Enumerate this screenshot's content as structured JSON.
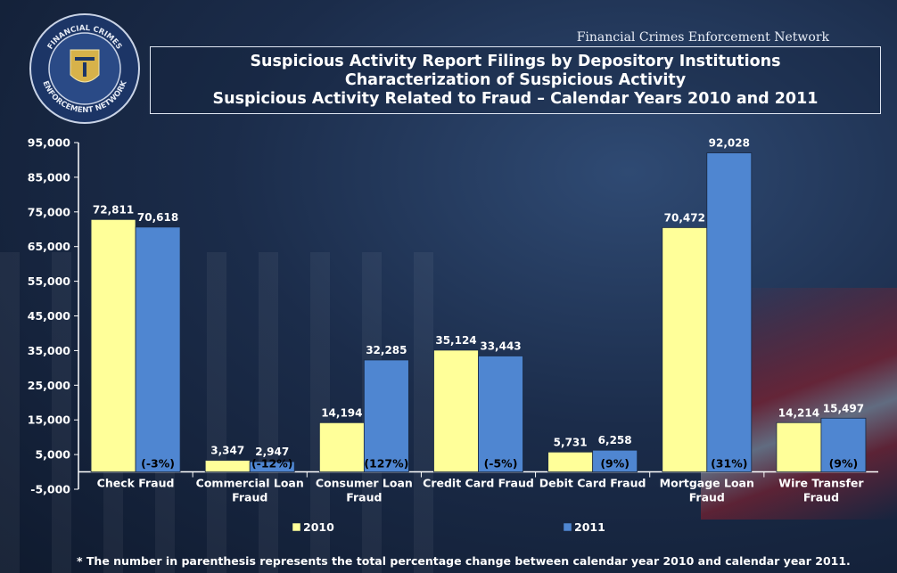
{
  "header": {
    "organization": "Financial Crimes Enforcement Network",
    "title_lines": [
      "Suspicious Activity Report Filings by Depository Institutions",
      "Characterization of Suspicious Activity",
      "Suspicious Activity Related to Fraud – Calendar Years 2010 and 2011"
    ],
    "seal_text_top": "FINANCIAL CRIMES",
    "seal_text_bottom": "ENFORCEMENT NETWORK"
  },
  "footnote": "*  The number in parenthesis represents the total percentage change between calendar year 2010 and calendar year 2011.",
  "chart_data": {
    "type": "bar",
    "title": "Suspicious Activity Related to Fraud – Calendar Years 2010 and 2011",
    "xlabel": "",
    "ylabel": "",
    "ylim": [
      -5000,
      95000
    ],
    "yticks": [
      -5000,
      5000,
      15000,
      25000,
      35000,
      45000,
      55000,
      65000,
      75000,
      85000,
      95000
    ],
    "ytick_labels": [
      "-5,000",
      "5,000",
      "15,000",
      "25,000",
      "35,000",
      "45,000",
      "55,000",
      "65,000",
      "75,000",
      "85,000",
      "95,000"
    ],
    "grid": false,
    "legend_position": "bottom",
    "categories": [
      [
        "Check Fraud"
      ],
      [
        "Commercial Loan",
        "Fraud"
      ],
      [
        "Consumer Loan",
        "Fraud"
      ],
      [
        "Credit Card Fraud"
      ],
      [
        "Debit Card Fraud"
      ],
      [
        "Mortgage Loan",
        "Fraud"
      ],
      [
        "Wire Transfer",
        "Fraud"
      ]
    ],
    "series": [
      {
        "name": "2010",
        "color": "#ffff99",
        "values": [
          72811,
          3347,
          14194,
          35124,
          5731,
          70472,
          14214
        ],
        "labels": [
          "72,811",
          "3,347",
          "14,194",
          "35,124",
          "5,731",
          "70,472",
          "14,214"
        ]
      },
      {
        "name": "2011",
        "color": "#4f86d1",
        "values": [
          70618,
          2947,
          32285,
          33443,
          6258,
          92028,
          15497
        ],
        "labels": [
          "70,618",
          "2,947",
          "32,285",
          "33,443",
          "6,258",
          "92,028",
          "15,497"
        ]
      }
    ],
    "pct_change": [
      "(-3%)",
      "(-12%)",
      "(127%)",
      "(-5%)",
      "(9%)",
      "(31%)",
      "(9%)"
    ]
  }
}
